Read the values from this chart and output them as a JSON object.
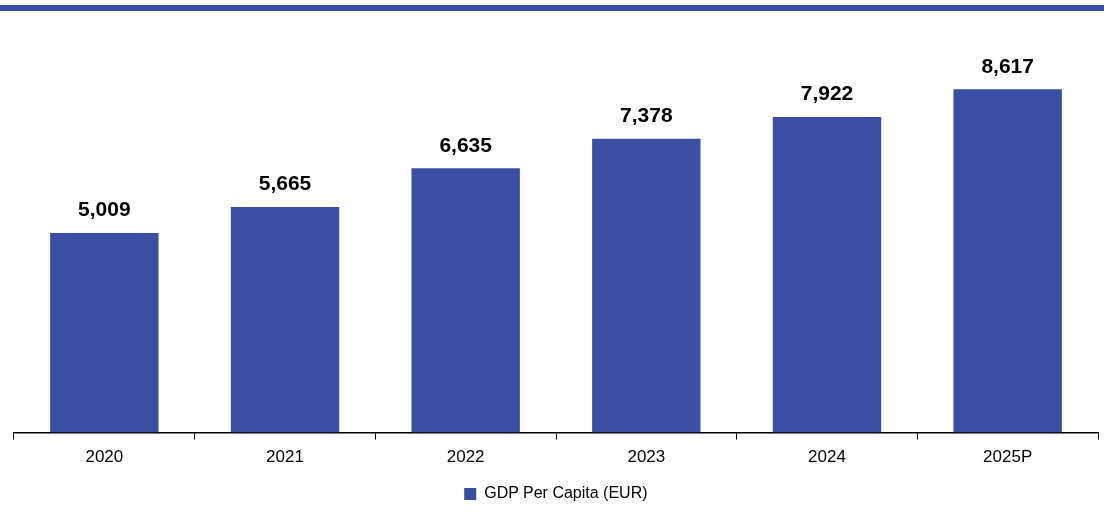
{
  "chart_data": {
    "type": "bar",
    "categories": [
      "2020",
      "2021",
      "2022",
      "2023",
      "2024",
      "2025P"
    ],
    "series": [
      {
        "name": "GDP Per Capita (EUR)",
        "color": "#3a4fa3",
        "values": [
          5009,
          5665,
          6635,
          7378,
          7922,
          8617
        ],
        "value_labels": [
          "5,009",
          "5,665",
          "6,635",
          "7,378",
          "7,922",
          "8,617"
        ]
      }
    ],
    "legend": "bottom",
    "grid": false,
    "tick_labels": "x"
  }
}
